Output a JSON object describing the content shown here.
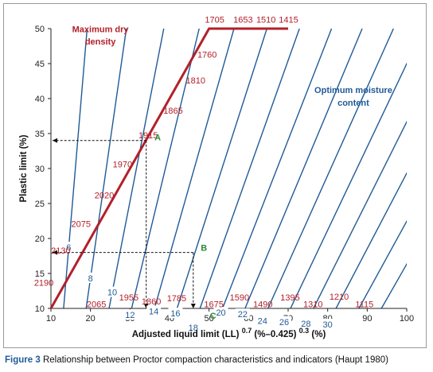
{
  "caption": {
    "figure": "Figure 3",
    "text": "Relationship between Proctor compaction characteristics and indicators (Haupt 1980)"
  },
  "chart_data": {
    "type": "line",
    "xlabel": "Adjusted liquid limit (LL)",
    "xlabel_sup1": "0.7",
    "xlabel_mid": "(%–0.425)",
    "xlabel_sup2": "0.3",
    "xlabel_end": "(%)",
    "ylabel": "Plastic limit (%)",
    "xlim": [
      10,
      100
    ],
    "ylim": [
      10,
      50
    ],
    "x_ticks": [
      10,
      20,
      30,
      40,
      50,
      60,
      70,
      80,
      90,
      100
    ],
    "y_ticks": [
      10,
      15,
      20,
      25,
      30,
      35,
      40,
      45,
      50
    ],
    "colors": {
      "density": "#b3202a",
      "moisture": "#1f5a96",
      "points": "#2e8a3b",
      "axis": "#222222"
    },
    "annotations": {
      "max_dry_density": [
        "Maximum dry",
        "density"
      ],
      "optimum_moisture": [
        "Optimum moisture",
        "content"
      ]
    },
    "boundary": [
      [
        10,
        10
      ],
      [
        50,
        50
      ],
      [
        70,
        50
      ]
    ],
    "moisture_lines": [
      {
        "label": "6",
        "x0": 13.2,
        "slope": 6.72,
        "label_x": 14.5
      },
      {
        "label": "8",
        "x0": 18.9,
        "slope": 3.93,
        "label_x": 20
      },
      {
        "label": "10",
        "x0": 24.7,
        "slope": 2.89,
        "label_x": 25.5
      },
      {
        "label": "12",
        "x0": 30.4,
        "slope": 2.34,
        "label_x": 30
      },
      {
        "label": "14",
        "x0": 36.2,
        "slope": 1.99,
        "label_x": 36
      },
      {
        "label": "16",
        "x0": 41.9,
        "slope": 1.76,
        "label_x": 41.5
      },
      {
        "label": "18",
        "x0": 47.7,
        "slope": 1.59,
        "label_x": 46
      },
      {
        "label": "20",
        "x0": 53.4,
        "slope": 1.45,
        "label_x": 53
      },
      {
        "label": "22",
        "x0": 59.1,
        "slope": 1.35,
        "label_x": 58.5
      },
      {
        "label": "24",
        "x0": 64.9,
        "slope": 1.26,
        "label_x": 63.5
      },
      {
        "label": "26",
        "x0": 70.6,
        "slope": 1.19,
        "label_x": 69
      },
      {
        "label": "28",
        "x0": 76.4,
        "slope": 1.13,
        "label_x": 74.5
      },
      {
        "label": "30",
        "x0": 82.1,
        "slope": 1.08,
        "label_x": 80
      },
      {
        "label": "",
        "x0": 87.9,
        "slope": 1.03,
        "label_x": 0
      },
      {
        "label": "",
        "x0": 93.6,
        "slope": 0.99,
        "label_x": 0
      }
    ],
    "density_labels": [
      {
        "label": "1705",
        "x": 51.4,
        "y": 51.3
      },
      {
        "label": "1653",
        "x": 58.6,
        "y": 51.3
      },
      {
        "label": "1510",
        "x": 64.4,
        "y": 51.3
      },
      {
        "label": "1415",
        "x": 70.1,
        "y": 51.3
      },
      {
        "label": "1760",
        "x": 49.5,
        "y": 46.3
      },
      {
        "label": "1810",
        "x": 46.6,
        "y": 42.6
      },
      {
        "label": "1865",
        "x": 40.9,
        "y": 38.3
      },
      {
        "label": "1915",
        "x": 34.6,
        "y": 34.8
      },
      {
        "label": "1970",
        "x": 28.1,
        "y": 30.6
      },
      {
        "label": "2020",
        "x": 23.5,
        "y": 26.2
      },
      {
        "label": "2075",
        "x": 17.6,
        "y": 22.1
      },
      {
        "label": "2130",
        "x": 12.5,
        "y": 18.3
      },
      {
        "label": "2190",
        "x": 8.2,
        "y": 13.7
      },
      {
        "label": "2065",
        "x": 21.5,
        "y": 10.6
      },
      {
        "label": "1955",
        "x": 29.7,
        "y": 11.6
      },
      {
        "label": "1860",
        "x": 35.4,
        "y": 11.0
      },
      {
        "label": "1785",
        "x": 41.8,
        "y": 11.5
      },
      {
        "label": "1675",
        "x": 51.2,
        "y": 10.6
      },
      {
        "label": "1590",
        "x": 57.7,
        "y": 11.6
      },
      {
        "label": "1490",
        "x": 63.6,
        "y": 10.6
      },
      {
        "label": "1395",
        "x": 70.5,
        "y": 11.6
      },
      {
        "label": "1310",
        "x": 76.3,
        "y": 10.6
      },
      {
        "label": "1210",
        "x": 82.9,
        "y": 11.7
      },
      {
        "label": "1115",
        "x": 89.3,
        "y": 10.6
      }
    ],
    "points": [
      {
        "name": "A",
        "x": 34.1,
        "y": 34,
        "label_x": 37,
        "label_y": 34.5
      },
      {
        "name": "B",
        "x": 46,
        "y": 18,
        "label_x": 48.7,
        "label_y": 18.7
      },
      {
        "name": "C",
        "x": 0,
        "y": 0,
        "label_x": 51,
        "label_y": 9.0
      }
    ],
    "guides": [
      {
        "from": [
          34.1,
          34
        ],
        "to": [
          10,
          34
        ],
        "dir": "h"
      },
      {
        "from": [
          34.1,
          34
        ],
        "to": [
          34.1,
          10
        ],
        "dir": "v"
      },
      {
        "from": [
          46,
          18
        ],
        "to": [
          10,
          18
        ],
        "dir": "h"
      },
      {
        "from": [
          46,
          18
        ],
        "to": [
          46,
          10
        ],
        "dir": "v"
      }
    ]
  }
}
